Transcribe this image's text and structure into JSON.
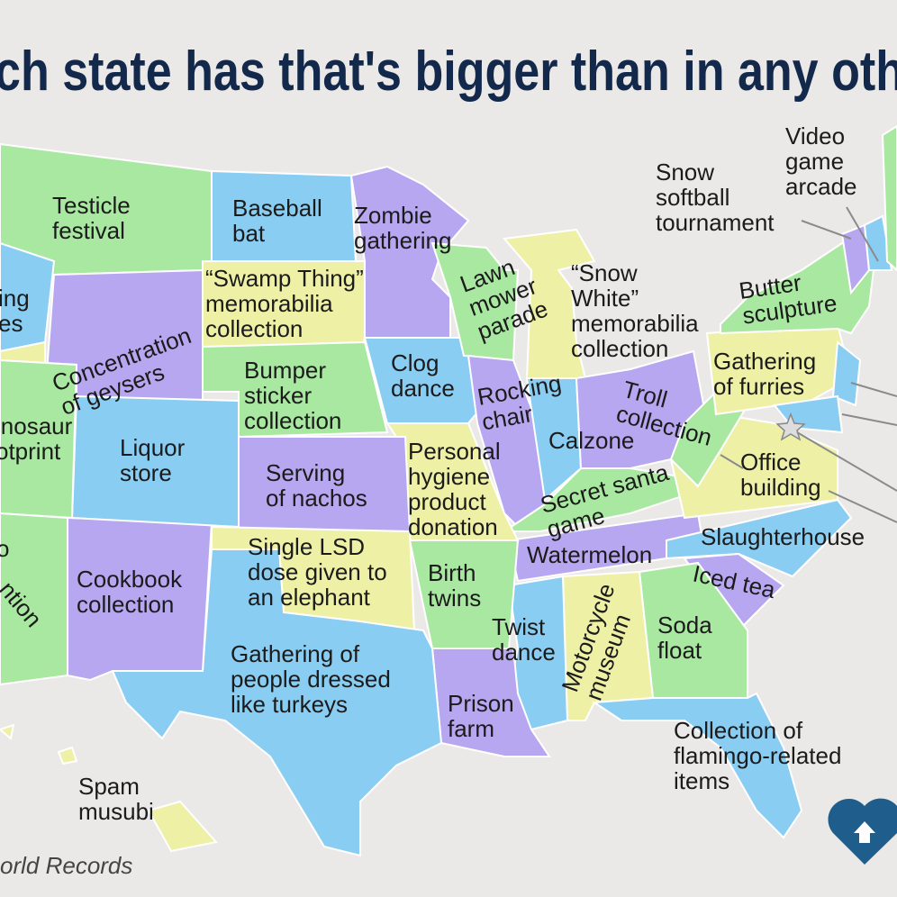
{
  "title": "ch state has that's bigger than in any oth",
  "source": "orld Records",
  "labels": [
    {
      "lines": [
        "Testicle",
        "festival"
      ]
    },
    {
      "lines": [
        "Baseball",
        "bat"
      ]
    },
    {
      "lines": [
        "Zombie",
        "gathering"
      ]
    },
    {
      "lines": [
        "ing",
        "es"
      ]
    },
    {
      "lines": [
        "Concentration",
        "of geysers"
      ]
    },
    {
      "lines": [
        "“Swamp Thing”",
        "memorabilia",
        "collection"
      ]
    },
    {
      "lines": [
        "Lawn",
        "mower",
        "parade"
      ]
    },
    {
      "lines": [
        "“Snow",
        "White”",
        "memorabilia",
        "collection"
      ]
    },
    {
      "lines": [
        "Butter",
        "sculpture"
      ]
    },
    {
      "lines": [
        "Snow",
        "softball",
        "tournament"
      ]
    },
    {
      "lines": [
        "Video",
        "game",
        "arcade"
      ]
    },
    {
      "lines": [
        "Bumper",
        "sticker",
        "collection"
      ]
    },
    {
      "lines": [
        "Clog",
        "dance"
      ]
    },
    {
      "lines": [
        "Rocking",
        "chair"
      ]
    },
    {
      "lines": [
        "Troll",
        "collection"
      ]
    },
    {
      "lines": [
        "Gathering",
        "of furries"
      ]
    },
    {
      "lines": [
        "inosaur",
        "otprint"
      ]
    },
    {
      "lines": [
        "Liquor",
        "store"
      ]
    },
    {
      "lines": [
        "Serving",
        "of nachos"
      ]
    },
    {
      "lines": [
        "Personal",
        "hygiene",
        "product",
        "donation"
      ]
    },
    {
      "lines": [
        "Calzone"
      ]
    },
    {
      "lines": [
        "Office",
        "building"
      ]
    },
    {
      "lines": [
        "Secret santa",
        "game"
      ]
    },
    {
      "lines": [
        "Slaughterhouse"
      ]
    },
    {
      "lines": [
        "Watermelon"
      ]
    },
    {
      "lines": [
        "Single LSD",
        "dose given to",
        "an elephant"
      ]
    },
    {
      "lines": [
        "Cookbook",
        "collection"
      ]
    },
    {
      "lines": [
        "Birth",
        "twins"
      ]
    },
    {
      "lines": [
        "Iced tea"
      ]
    },
    {
      "lines": [
        "o"
      ]
    },
    {
      "lines": [
        "ntion"
      ]
    },
    {
      "lines": [
        "Twist",
        "dance"
      ]
    },
    {
      "lines": [
        "Motorcycle",
        "museum"
      ]
    },
    {
      "lines": [
        "Soda",
        "float"
      ]
    },
    {
      "lines": [
        "Gathering of",
        "people dressed",
        "like turkeys"
      ]
    },
    {
      "lines": [
        "Prison",
        "farm"
      ]
    },
    {
      "lines": [
        "Collection of",
        "flamingo-related",
        "items"
      ]
    },
    {
      "lines": [
        "Spam",
        "musubi"
      ]
    }
  ]
}
